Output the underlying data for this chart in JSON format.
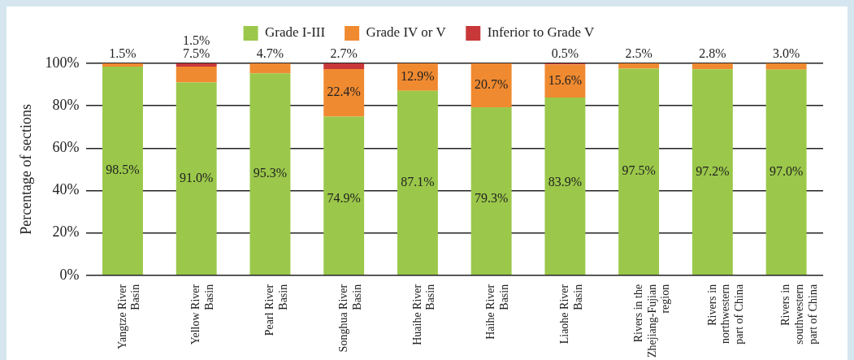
{
  "chart_data": {
    "type": "bar",
    "stacked": true,
    "ylabel": "Percentage of sections",
    "categories": [
      "Yangtze River Basin",
      "Yellow River Basin",
      "Pearl River Basin",
      "Songhua River Basin",
      "Huaihe River Basin",
      "Haihe River Basin",
      "Liaohe River Basin",
      "Rivers in the Zhejiang-Fujian region",
      "Rivers in northwestern part of China",
      "Rivers in southwestern part of China"
    ],
    "series": [
      {
        "name": "Grade I-III",
        "color": "#9bc84a",
        "values": [
          98.5,
          91.0,
          95.3,
          74.9,
          87.1,
          79.3,
          83.9,
          97.5,
          97.2,
          97.0
        ],
        "value_labels": [
          "98.5%",
          "91.0%",
          "95.3%",
          "74.9%",
          "87.1%",
          "79.3%",
          "83.9%",
          "97.5%",
          "97.2%",
          "97.0%"
        ]
      },
      {
        "name": "Grade IV or V",
        "color": "#f08a30",
        "values": [
          1.5,
          7.5,
          4.7,
          22.4,
          12.9,
          20.7,
          15.6,
          2.5,
          2.8,
          3.0
        ],
        "value_labels": [
          "1.5%",
          "7.5%",
          "4.7%",
          "22.4%",
          "12.9%",
          "20.7%",
          "15.6%",
          "2.5%",
          "2.8%",
          "3.0%"
        ]
      },
      {
        "name": "Inferior to Grade V",
        "color": "#c8383a",
        "values": [
          0,
          1.5,
          0,
          2.7,
          0,
          0,
          0.5,
          0,
          0,
          0
        ],
        "value_labels": [
          null,
          "1.5%",
          null,
          "2.7%",
          null,
          null,
          "0.5%",
          null,
          null,
          null
        ]
      }
    ],
    "ylim": [
      0,
      100
    ],
    "yticks": [
      {
        "value": 0,
        "label": "0%"
      },
      {
        "value": 20,
        "label": "20%"
      },
      {
        "value": 40,
        "label": "40%"
      },
      {
        "value": 60,
        "label": "60%"
      },
      {
        "value": 80,
        "label": "80%"
      },
      {
        "value": 100,
        "label": "100%"
      }
    ],
    "grid": "y",
    "legend": "top"
  }
}
